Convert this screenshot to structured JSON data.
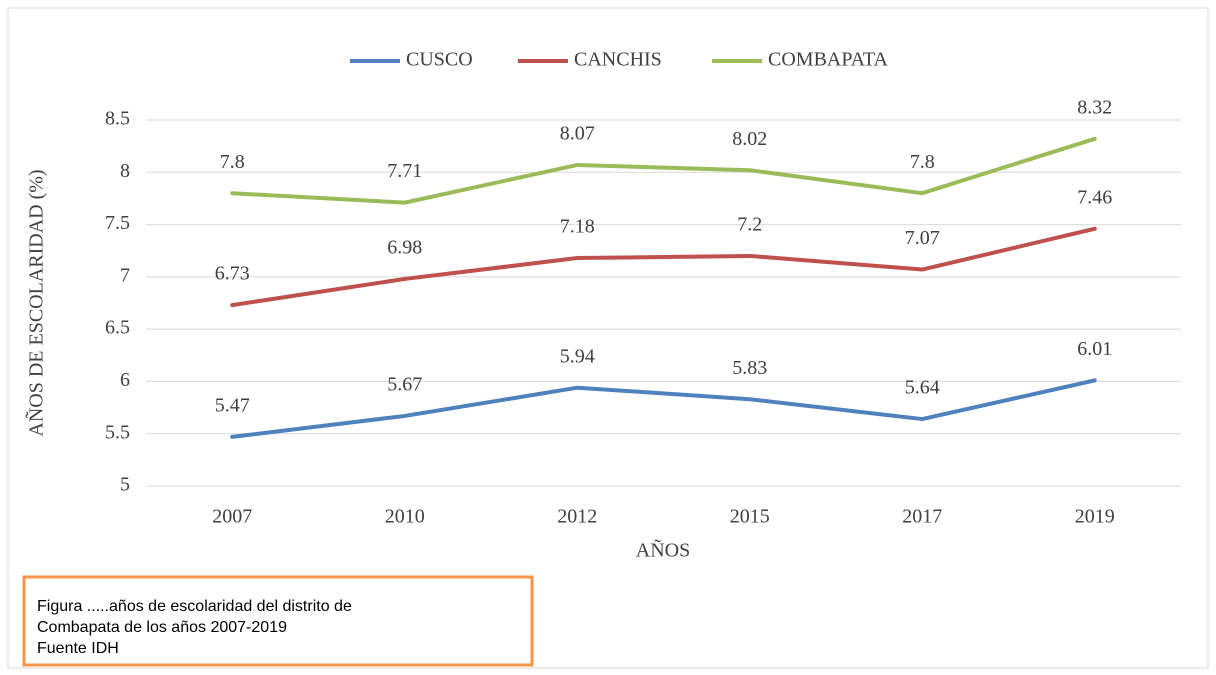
{
  "chart_data": {
    "type": "line",
    "categories": [
      "2007",
      "2010",
      "2012",
      "2015",
      "2017",
      "2019"
    ],
    "series": [
      {
        "name": "CUSCO",
        "color": "#4f81bd",
        "values": [
          5.47,
          5.67,
          5.94,
          5.83,
          5.64,
          6.01
        ]
      },
      {
        "name": "CANCHIS",
        "color": "#c0504d",
        "values": [
          6.73,
          6.98,
          7.18,
          7.2,
          7.07,
          7.46
        ]
      },
      {
        "name": "COMBAPATA",
        "color": "#9bbb59",
        "values": [
          7.8,
          7.71,
          8.07,
          8.02,
          7.8,
          8.32
        ]
      }
    ],
    "ylim": [
      5,
      8.5
    ],
    "yticks": [
      5,
      5.5,
      6,
      6.5,
      7,
      7.5,
      8,
      8.5
    ],
    "grid": true,
    "legend": "top",
    "xlabel": "AÑOS",
    "ylabel": "AÑOS DE ESCOLARIDAD (%)",
    "annotations": [
      "Figura .....años de escolaridad del distrito de",
      "Combapata de los años 2007-2019",
      "Fuente IDH"
    ]
  }
}
